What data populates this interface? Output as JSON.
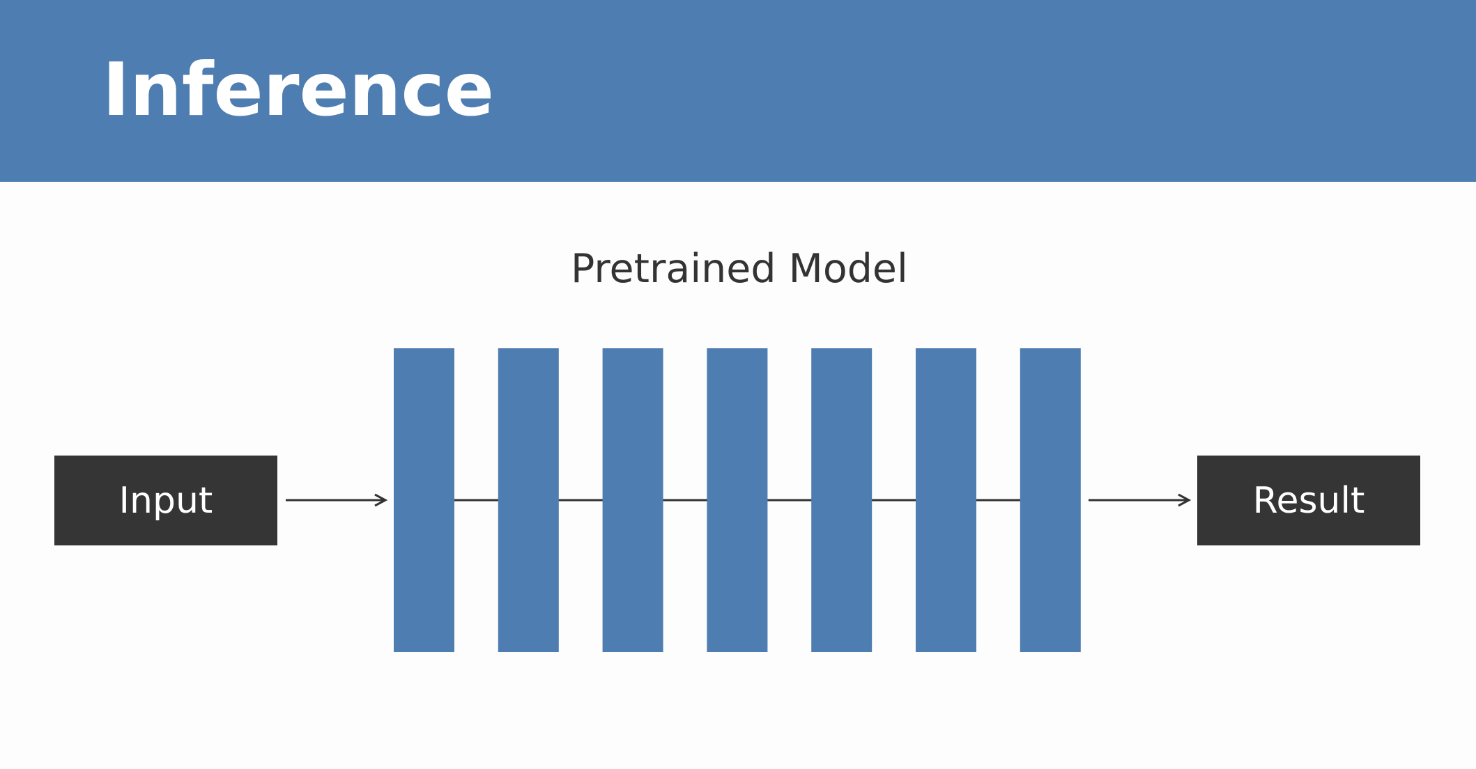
{
  "header": {
    "title": "Inference",
    "color": "#4e7db1"
  },
  "diagram": {
    "model_label": "Pretrained Model",
    "input_label": "Input",
    "result_label": "Result",
    "layer_count": 7,
    "layer_color": "#4e7db1",
    "box_color": "#353535",
    "line_color": "#333333"
  }
}
